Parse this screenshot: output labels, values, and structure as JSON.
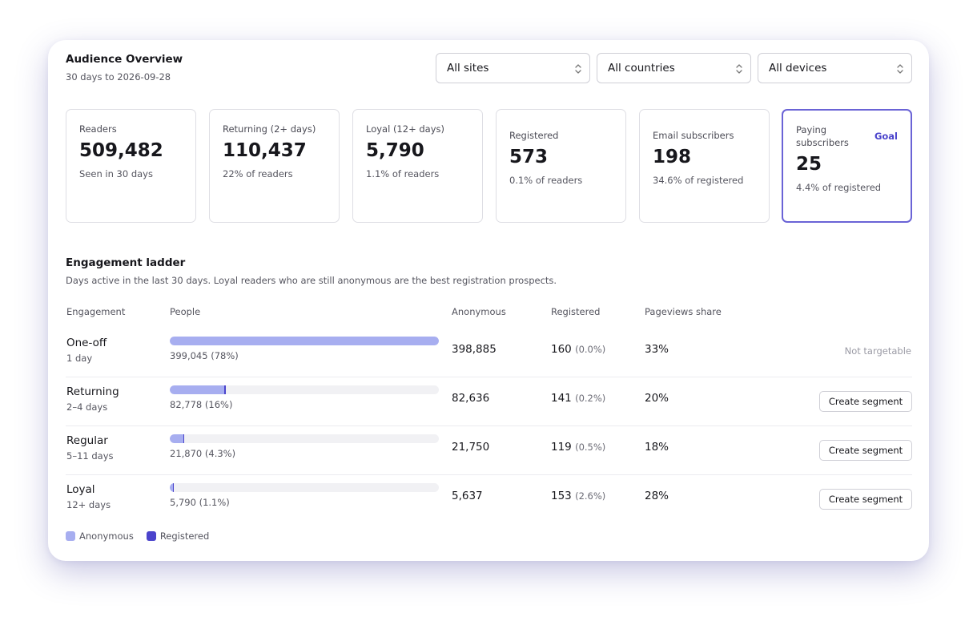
{
  "header": {
    "title": "Audience Overview",
    "subtitle": "30 days to 2026-09-28"
  },
  "filters": [
    {
      "value": "All sites"
    },
    {
      "value": "All countries"
    },
    {
      "value": "All devices"
    }
  ],
  "kpis": [
    {
      "label": "Readers",
      "value": "509,482",
      "sub": "Seen in 30 days"
    },
    {
      "label": "Returning (2+ days)",
      "value": "110,437",
      "sub": "22% of readers"
    },
    {
      "label": "Loyal (12+ days)",
      "value": "5,790",
      "sub": "1.1% of readers"
    },
    {
      "label": "Registered",
      "value": "573",
      "sub": "0.1% of readers"
    },
    {
      "label": "Email subscribers",
      "value": "198",
      "sub": "34.6% of registered"
    },
    {
      "label": "Paying subscribers",
      "value": "25",
      "sub": "4.4% of registered",
      "tag": "Goal"
    }
  ],
  "ladder": {
    "title": "Engagement ladder",
    "description": "Days active in the last 30 days. Loyal readers who are still anonymous are the best registration prospects.",
    "columns": [
      "Engagement",
      "People",
      "Anonymous",
      "Registered",
      "Pageviews share"
    ],
    "rows": [
      {
        "name": "One-off",
        "days": "1 day",
        "people": "399,045 (78%)",
        "people_fraction": 1.0,
        "registered_fraction": 0.0,
        "anonymous": "398,885",
        "registered": "160",
        "registered_pct": "(0.0%)",
        "pageviews": "33%",
        "action": "Not targetable"
      },
      {
        "name": "Returning",
        "days": "2–4 days",
        "people": "82,778 (16%)",
        "people_fraction": 0.2074,
        "registered_fraction": 0.0017,
        "anonymous": "82,636",
        "registered": "141",
        "registered_pct": "(0.2%)",
        "pageviews": "20%",
        "action": "Create segment"
      },
      {
        "name": "Regular",
        "days": "5–11 days",
        "people": "21,870 (4.3%)",
        "people_fraction": 0.0548,
        "registered_fraction": 0.0054,
        "anonymous": "21,750",
        "registered": "119",
        "registered_pct": "(0.5%)",
        "pageviews": "18%",
        "action": "Create segment"
      },
      {
        "name": "Loyal",
        "days": "12+ days",
        "people": "5,790 (1.1%)",
        "people_fraction": 0.0145,
        "registered_fraction": 0.0264,
        "anonymous": "5,637",
        "registered": "153",
        "registered_pct": "(2.6%)",
        "pageviews": "28%",
        "action": "Create segment"
      }
    ]
  },
  "legend": [
    {
      "label": "Anonymous",
      "color": "#a7aef0"
    },
    {
      "label": "Registered",
      "color": "#4b44cc"
    }
  ],
  "colors": {
    "accent": "#4b44cc",
    "anonymous_bar": "#a7aef0"
  }
}
